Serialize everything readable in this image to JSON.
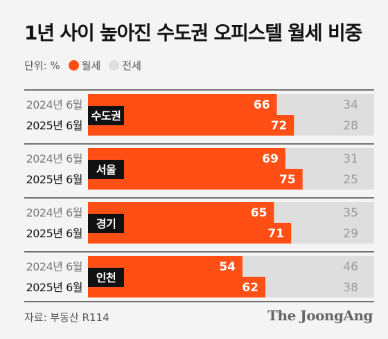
{
  "header": {
    "title": "1년 사이 높아진 수도권 오피스텔 월세 비중",
    "unit_label": "단위: %",
    "legend": [
      {
        "label": "월세",
        "color": "#ff4f14"
      },
      {
        "label": "전세",
        "color": "#dedede"
      }
    ]
  },
  "footer": {
    "source": "자료: 부동산 R114",
    "brand": "The JoongAng"
  },
  "chart_data": {
    "type": "bar",
    "stacked": true,
    "orientation": "horizontal",
    "groups": [
      {
        "region": "수도권",
        "rows": [
          {
            "label": "2024년 6월",
            "monthly": 66,
            "jeonse": 34
          },
          {
            "label": "2025년 6월",
            "monthly": 72,
            "jeonse": 28
          }
        ]
      },
      {
        "region": "서울",
        "rows": [
          {
            "label": "2024년 6월",
            "monthly": 69,
            "jeonse": 31
          },
          {
            "label": "2025년 6월",
            "monthly": 75,
            "jeonse": 25
          }
        ]
      },
      {
        "region": "경기",
        "rows": [
          {
            "label": "2024년 6월",
            "monthly": 65,
            "jeonse": 35
          },
          {
            "label": "2025년 6월",
            "monthly": 71,
            "jeonse": 29
          }
        ]
      },
      {
        "region": "인천",
        "rows": [
          {
            "label": "2024년 6월",
            "monthly": 54,
            "jeonse": 46
          },
          {
            "label": "2025년 6월",
            "monthly": 62,
            "jeonse": 38
          }
        ]
      }
    ],
    "series": [
      {
        "name": "월세",
        "color": "#ff4f14"
      },
      {
        "name": "전세",
        "color": "#dedede"
      }
    ],
    "xlim": [
      0,
      100
    ]
  }
}
